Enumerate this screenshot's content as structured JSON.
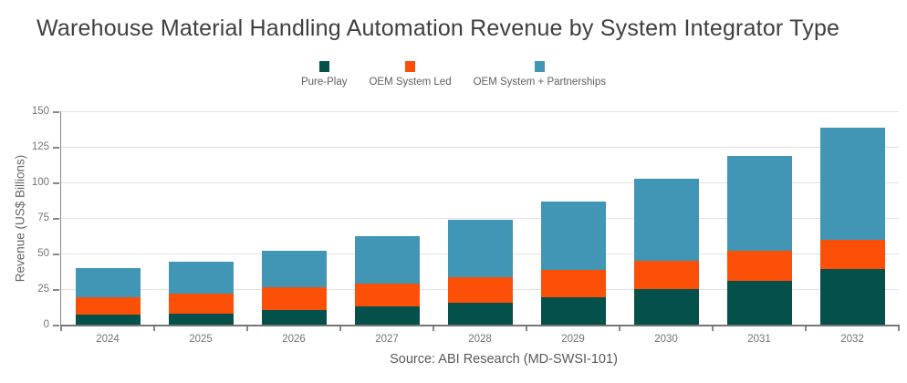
{
  "title": "Warehouse Material Handling Automation Revenue by System Integrator Type",
  "source": "Source: ABI Research (MD-SWSI-101)",
  "colors": {
    "pure_play": "#04504a",
    "oem_system_led": "#fc4f08",
    "oem_system_partnerships": "#4096b4",
    "gridline": "#e1e1e1",
    "axis_line": "#868686",
    "tick_label": "#757474",
    "title_text": "#3f3f3f"
  },
  "chart_data": {
    "type": "bar",
    "stacked": true,
    "title": "Warehouse Material Handling Automation Revenue by System Integrator Type",
    "xlabel": "",
    "ylabel": "Revenue (US$ Billions)",
    "ylim": [
      0,
      150
    ],
    "yticks": [
      0,
      25,
      50,
      75,
      100,
      125,
      150
    ],
    "grid": true,
    "legend_position": "top",
    "categories": [
      "2024",
      "2025",
      "2026",
      "2027",
      "2028",
      "2029",
      "2030",
      "2031",
      "2032"
    ],
    "series": [
      {
        "name": "Pure-Play",
        "color": "#04504a",
        "values": [
          7,
          8,
          10,
          13,
          15.5,
          19,
          25,
          31,
          39
        ]
      },
      {
        "name": "OEM System Led",
        "color": "#fc4f08",
        "values": [
          12.5,
          13.5,
          16,
          16,
          18,
          19.5,
          20,
          21,
          20.5
        ]
      },
      {
        "name": "OEM System + Partnerships",
        "color": "#4096b4",
        "values": [
          20,
          23,
          26,
          33,
          40.5,
          48,
          57.5,
          66.5,
          79
        ]
      }
    ],
    "totals": [
      39.5,
      44.5,
      52,
      62,
      74,
      86.5,
      102.5,
      118.5,
      138.5
    ]
  }
}
